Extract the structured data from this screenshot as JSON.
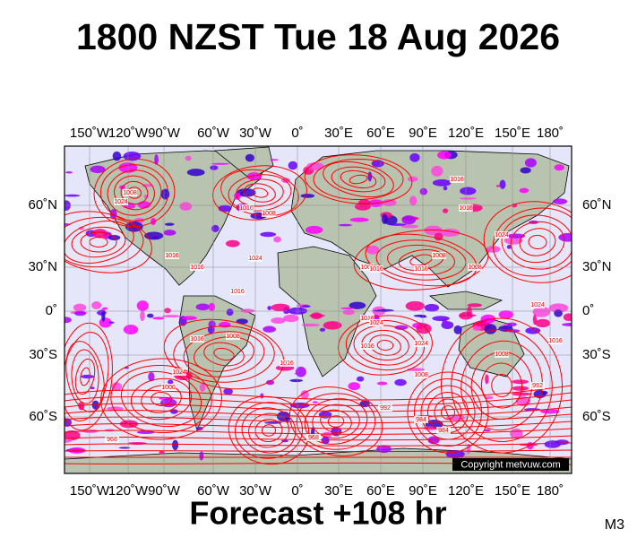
{
  "title": "1800 NZST Tue 18 Aug 2026",
  "lon_labels": [
    "150˚W",
    "120˚W",
    "90˚W",
    "60˚W",
    "30˚W",
    "0˚",
    "30˚E",
    "60˚E",
    "90˚E",
    "120˚E",
    "150˚E",
    "180˚"
  ],
  "lat_labels": [
    "60˚N",
    "30˚N",
    "0˚",
    "30˚S",
    "60˚S"
  ],
  "isobar_labels": [
    "1008",
    "1024",
    "1016",
    "1016",
    "1016",
    "1008",
    "1024",
    "1016",
    "1008",
    "1016",
    "1016",
    "1016",
    "1008",
    "1008",
    "1016",
    "1024",
    "1016",
    "1024",
    "1024",
    "1016",
    "1016",
    "1024",
    "1016",
    "1008",
    "1008",
    "1000",
    "992",
    "984",
    "968",
    "992",
    "968",
    "984",
    "1008",
    "1024",
    "1016"
  ],
  "copyright": "Copyright metvuw.com",
  "footer": "Forecast +108 hr",
  "code": "M3"
}
